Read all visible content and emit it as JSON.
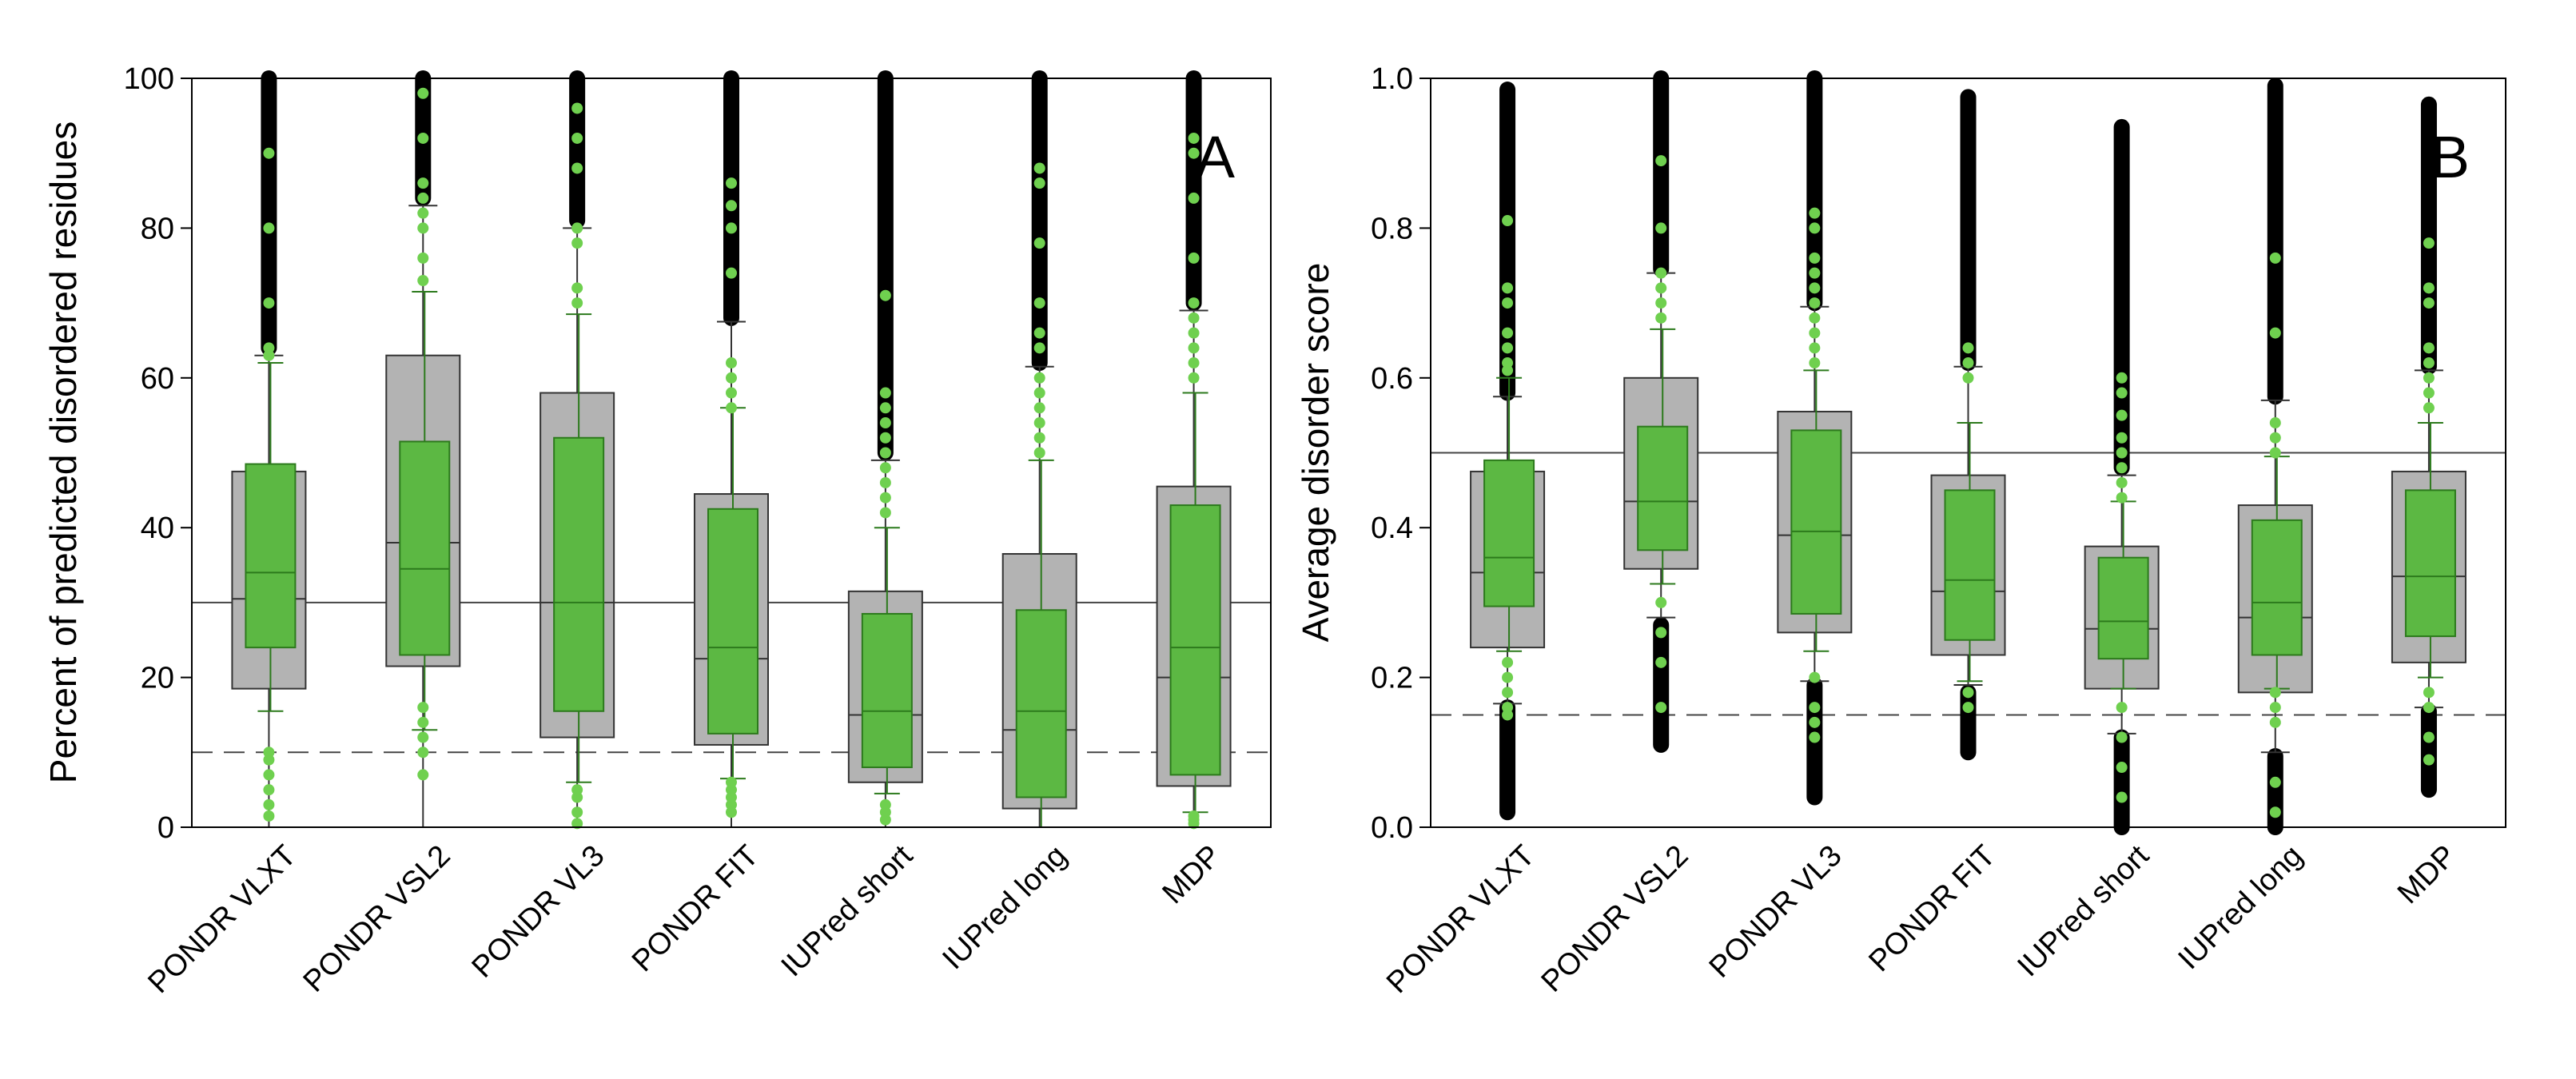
{
  "chart_data": [
    {
      "type": "box",
      "panel_label": "A",
      "ylabel": "Percent of predicted disordered residues",
      "ylim": [
        0,
        100
      ],
      "yticks": [
        0,
        20,
        40,
        60,
        80,
        100
      ],
      "ytick_labels": [
        "0",
        "20",
        "40",
        "60",
        "80",
        "100"
      ],
      "categories": [
        "PONDR VLXT",
        "PONDR VSL2",
        "PONDR VL3",
        "PONDR FIT",
        "IUPred short",
        "IUPred long",
        "MDP"
      ],
      "reference_lines": [
        {
          "style": "solid",
          "y": 30
        },
        {
          "style": "dashed",
          "y": 10
        }
      ],
      "series": [
        {
          "color": "#b3b3b3",
          "boxes": [
            {
              "q1": 18.5,
              "median": 30.5,
              "q3": 47.5,
              "whisker_low": 0,
              "whisker_high": 63
            },
            {
              "q1": 21.5,
              "median": 38,
              "q3": 63,
              "whisker_low": 0,
              "whisker_high": 83
            },
            {
              "q1": 12,
              "median": 30,
              "q3": 58,
              "whisker_low": 0,
              "whisker_high": 80
            },
            {
              "q1": 11,
              "median": 22.5,
              "q3": 44.5,
              "whisker_low": 0,
              "whisker_high": 67.5
            },
            {
              "q1": 6,
              "median": 15,
              "q3": 31.5,
              "whisker_low": 0,
              "whisker_high": 49
            },
            {
              "q1": 2.5,
              "median": 13,
              "q3": 36.5,
              "whisker_low": 0,
              "whisker_high": 61.5
            },
            {
              "q1": 5.5,
              "median": 20,
              "q3": 45.5,
              "whisker_low": 0,
              "whisker_high": 69
            }
          ],
          "outlier_ranges": [
            [
              64,
              100
            ],
            [
              84,
              100
            ],
            [
              81,
              100
            ],
            [
              68,
              100
            ],
            [
              50,
              100
            ],
            [
              62,
              100
            ],
            [
              70,
              100
            ]
          ]
        },
        {
          "color": "#5cb843",
          "boxes": [
            {
              "q1": 24,
              "median": 34,
              "q3": 48.5,
              "whisker_low": 15.5,
              "whisker_high": 62
            },
            {
              "q1": 23,
              "median": 34.5,
              "q3": 51.5,
              "whisker_low": 13,
              "whisker_high": 71.5
            },
            {
              "q1": 15.5,
              "median": 30,
              "q3": 52,
              "whisker_low": 6,
              "whisker_high": 68.5
            },
            {
              "q1": 12.5,
              "median": 24,
              "q3": 42.5,
              "whisker_low": 6.5,
              "whisker_high": 56
            },
            {
              "q1": 8,
              "median": 15.5,
              "q3": 28.5,
              "whisker_low": 4.5,
              "whisker_high": 40
            },
            {
              "q1": 4,
              "median": 15.5,
              "q3": 29,
              "whisker_low": 0,
              "whisker_high": 49
            },
            {
              "q1": 7,
              "median": 24,
              "q3": 43,
              "whisker_low": 2,
              "whisker_high": 58
            }
          ],
          "outliers": [
            [
              1.5,
              3,
              5,
              7,
              9,
              10,
              63,
              64,
              70,
              80,
              90
            ],
            [
              7,
              10,
              12,
              14,
              16,
              73,
              76,
              80,
              82,
              84,
              86,
              92,
              98
            ],
            [
              0.5,
              2,
              4,
              5,
              70,
              72,
              78,
              80,
              88,
              92,
              96
            ],
            [
              2,
              3,
              4,
              5,
              6,
              56,
              58,
              60,
              62,
              74,
              80,
              83,
              86
            ],
            [
              1,
              2,
              3,
              42,
              44,
              46,
              48,
              50,
              52,
              54,
              56,
              58,
              71
            ],
            [
              50,
              52,
              54,
              56,
              58,
              60,
              64,
              66,
              70,
              78,
              86,
              88
            ],
            [
              0.5,
              1,
              1.5,
              60,
              62,
              64,
              66,
              68,
              70,
              76,
              84,
              90,
              92
            ]
          ]
        }
      ]
    },
    {
      "type": "box",
      "panel_label": "B",
      "ylabel": "Average disorder score",
      "ylim": [
        0,
        1
      ],
      "yticks": [
        0,
        0.2,
        0.4,
        0.6,
        0.8,
        1.0
      ],
      "ytick_labels": [
        "0.0",
        "0.2",
        "0.4",
        "0.6",
        "0.8",
        "1.0"
      ],
      "categories": [
        "PONDR VLXT",
        "PONDR VSL2",
        "PONDR VL3",
        "PONDR FIT",
        "IUPred short",
        "IUPred long",
        "MDP"
      ],
      "reference_lines": [
        {
          "style": "solid",
          "y": 0.5
        },
        {
          "style": "dashed",
          "y": 0.15
        }
      ],
      "series": [
        {
          "color": "#b3b3b3",
          "boxes": [
            {
              "q1": 0.24,
              "median": 0.34,
              "q3": 0.475,
              "whisker_low": 0.165,
              "whisker_high": 0.575
            },
            {
              "q1": 0.345,
              "median": 0.435,
              "q3": 0.6,
              "whisker_low": 0.28,
              "whisker_high": 0.74
            },
            {
              "q1": 0.26,
              "median": 0.39,
              "q3": 0.555,
              "whisker_low": 0.195,
              "whisker_high": 0.695
            },
            {
              "q1": 0.23,
              "median": 0.315,
              "q3": 0.47,
              "whisker_low": 0.19,
              "whisker_high": 0.615
            },
            {
              "q1": 0.185,
              "median": 0.265,
              "q3": 0.375,
              "whisker_low": 0.125,
              "whisker_high": 0.47
            },
            {
              "q1": 0.18,
              "median": 0.28,
              "q3": 0.43,
              "whisker_low": 0.1,
              "whisker_high": 0.57
            },
            {
              "q1": 0.22,
              "median": 0.335,
              "q3": 0.475,
              "whisker_low": 0.16,
              "whisker_high": 0.61
            }
          ],
          "outlier_ranges": [
            [
              0.02,
              0.16
            ],
            [
              0.11,
              0.27
            ],
            [
              0.04,
              0.19
            ],
            [
              0.1,
              0.18
            ],
            [
              0.0,
              0.12
            ],
            [
              0.0,
              0.095
            ],
            [
              0.05,
              0.155
            ],
            [
              0.58,
              0.985
            ],
            [
              0.745,
              1.0
            ],
            [
              0.7,
              1.0
            ],
            [
              0.62,
              0.975
            ],
            [
              0.48,
              0.935
            ],
            [
              0.575,
              0.99
            ],
            [
              0.615,
              0.965
            ]
          ]
        },
        {
          "color": "#5cb843",
          "boxes": [
            {
              "q1": 0.295,
              "median": 0.36,
              "q3": 0.49,
              "whisker_low": 0.235,
              "whisker_high": 0.6
            },
            {
              "q1": 0.37,
              "median": 0.435,
              "q3": 0.535,
              "whisker_low": 0.325,
              "whisker_high": 0.665
            },
            {
              "q1": 0.285,
              "median": 0.395,
              "q3": 0.53,
              "whisker_low": 0.235,
              "whisker_high": 0.61
            },
            {
              "q1": 0.25,
              "median": 0.33,
              "q3": 0.45,
              "whisker_low": 0.195,
              "whisker_high": 0.54
            },
            {
              "q1": 0.225,
              "median": 0.275,
              "q3": 0.36,
              "whisker_low": 0.185,
              "whisker_high": 0.435
            },
            {
              "q1": 0.23,
              "median": 0.3,
              "q3": 0.41,
              "whisker_low": 0.185,
              "whisker_high": 0.495
            },
            {
              "q1": 0.255,
              "median": 0.335,
              "q3": 0.45,
              "whisker_low": 0.2,
              "whisker_high": 0.54
            }
          ],
          "outliers": [
            [
              0.15,
              0.16,
              0.18,
              0.2,
              0.22,
              0.61,
              0.62,
              0.64,
              0.66,
              0.7,
              0.72,
              0.81
            ],
            [
              0.16,
              0.22,
              0.26,
              0.3,
              0.68,
              0.7,
              0.72,
              0.74,
              0.8,
              0.89
            ],
            [
              0.12,
              0.14,
              0.16,
              0.2,
              0.62,
              0.64,
              0.66,
              0.68,
              0.7,
              0.72,
              0.74,
              0.76,
              0.8,
              0.82
            ],
            [
              0.16,
              0.18,
              0.6,
              0.62,
              0.64
            ],
            [
              0.04,
              0.08,
              0.12,
              0.16,
              0.44,
              0.46,
              0.48,
              0.5,
              0.52,
              0.55,
              0.58,
              0.6
            ],
            [
              0.02,
              0.06,
              0.14,
              0.16,
              0.18,
              0.5,
              0.52,
              0.54,
              0.66,
              0.76
            ],
            [
              0.09,
              0.12,
              0.16,
              0.18,
              0.56,
              0.58,
              0.6,
              0.62,
              0.64,
              0.7,
              0.72,
              0.78
            ]
          ]
        }
      ]
    }
  ]
}
